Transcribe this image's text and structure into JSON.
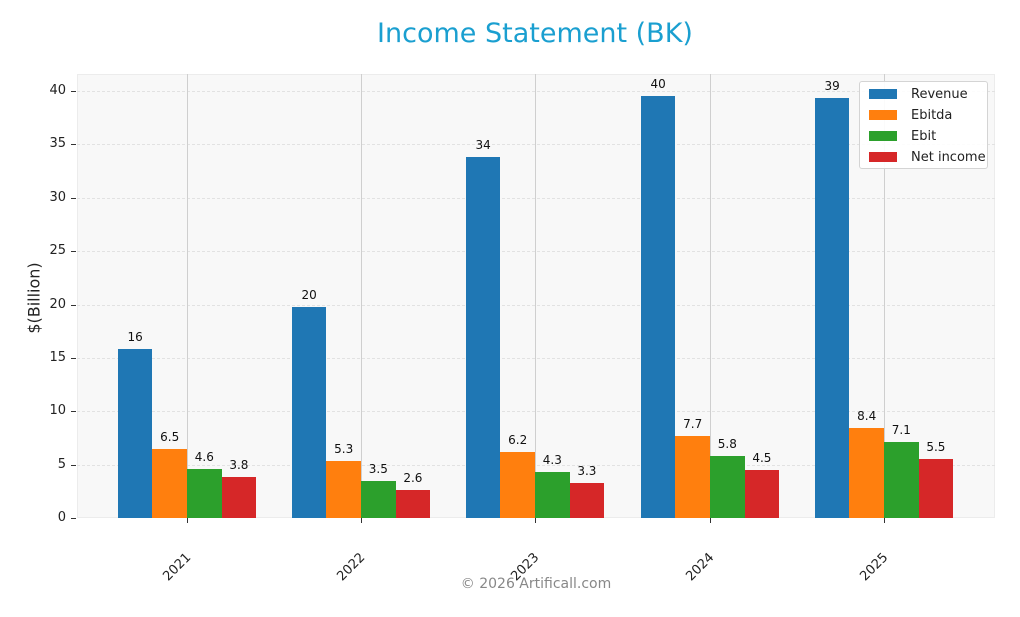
{
  "chart_data": {
    "type": "bar",
    "title": "Income Statement (BK)",
    "xlabel": "",
    "ylabel": "$(Billion)",
    "ylim": [
      0,
      41.5
    ],
    "yticks": [
      0,
      5,
      10,
      15,
      20,
      25,
      30,
      35,
      40
    ],
    "grid": true,
    "legend_position": "upper right",
    "categories": [
      "2021",
      "2022",
      "2023",
      "2024",
      "2025"
    ],
    "series": [
      {
        "name": "Revenue",
        "color": "#1f77b4",
        "values": [
          15.8,
          19.8,
          33.8,
          39.5,
          39.3
        ],
        "labels": [
          "16",
          "20",
          "34",
          "40",
          "39"
        ]
      },
      {
        "name": "Ebitda",
        "color": "#ff7f0e",
        "values": [
          6.5,
          5.3,
          6.2,
          7.7,
          8.4
        ],
        "labels": [
          "6.5",
          "5.3",
          "6.2",
          "7.7",
          "8.4"
        ]
      },
      {
        "name": "Ebit",
        "color": "#2ca02c",
        "values": [
          4.6,
          3.5,
          4.3,
          5.8,
          7.1
        ],
        "labels": [
          "4.6",
          "3.5",
          "4.3",
          "5.8",
          "7.1"
        ]
      },
      {
        "name": "Net income",
        "color": "#d62728",
        "values": [
          3.8,
          2.6,
          3.3,
          4.5,
          5.5
        ],
        "labels": [
          "3.8",
          "2.6",
          "3.3",
          "4.5",
          "5.5"
        ]
      }
    ]
  },
  "title": "Income Statement (BK)",
  "ylabel": "$(Billion)",
  "footer": "© 2026 Artificall.com",
  "colors": {
    "title": "#1a9fd0",
    "footer": "#888888"
  }
}
